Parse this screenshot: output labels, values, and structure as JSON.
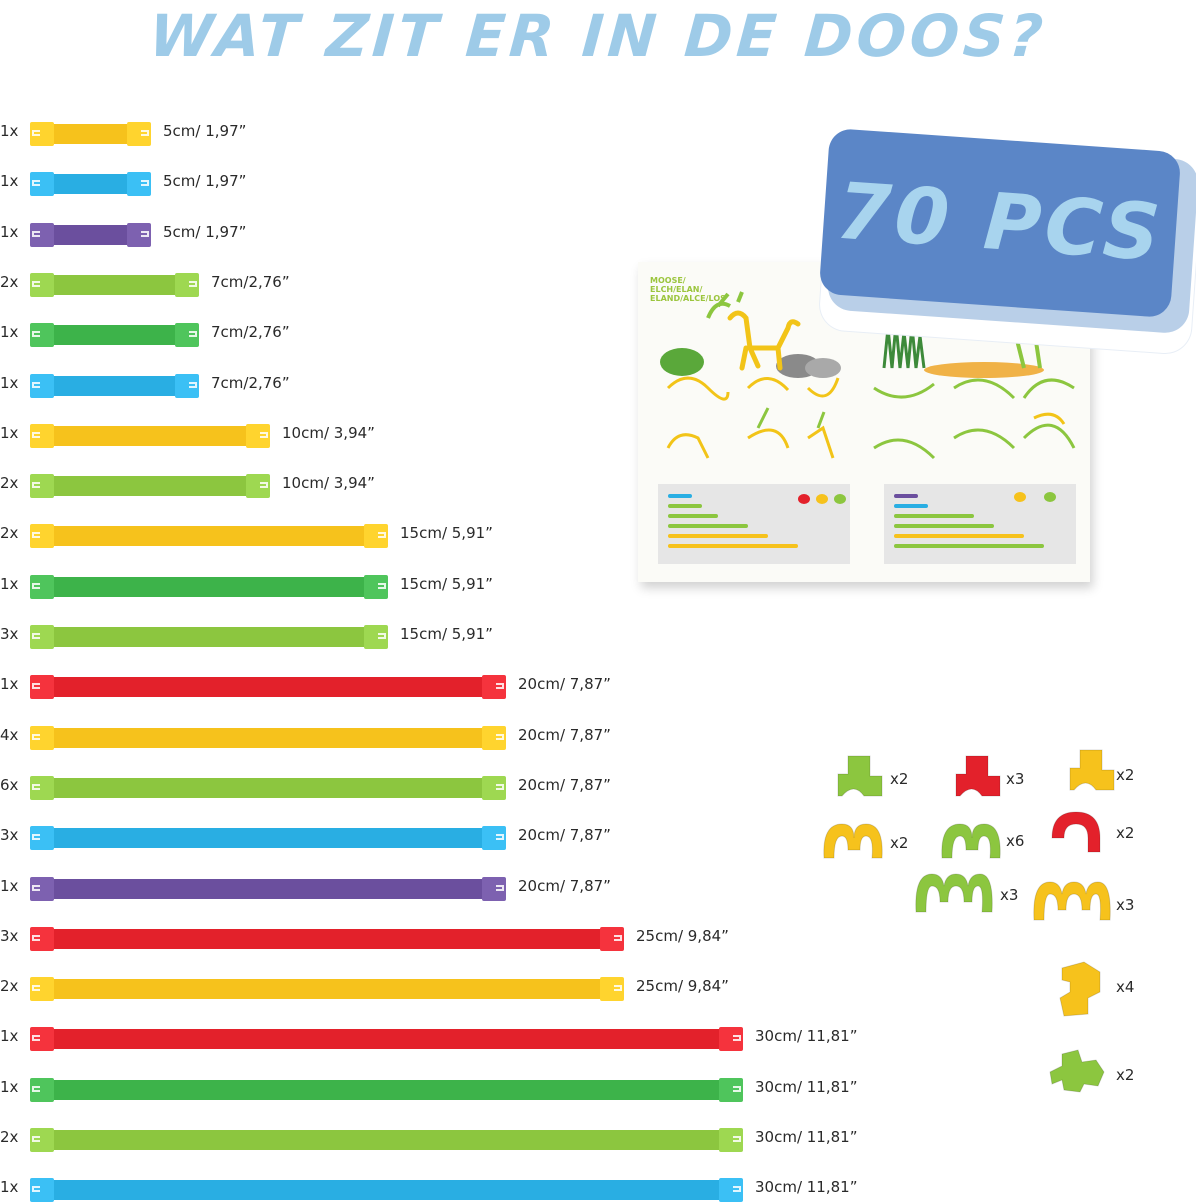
{
  "title": "WAT ZIT ER IN DE DOOS?",
  "badge": {
    "label": "70 PCS"
  },
  "colors": {
    "yellow": "#f6c21c",
    "blue": "#29aee3",
    "purple": "#6b4f9e",
    "lime": "#8cc63f",
    "green": "#3db34a",
    "red": "#e3212b"
  },
  "rods": [
    {
      "qty": "1x",
      "size": "5cm/ 1,97”",
      "color": "yellow",
      "length_cm": 5
    },
    {
      "qty": "1x",
      "size": "5cm/ 1,97”",
      "color": "blue",
      "length_cm": 5
    },
    {
      "qty": "1x",
      "size": "5cm/ 1,97”",
      "color": "purple",
      "length_cm": 5
    },
    {
      "qty": "2x",
      "size": "7cm/2,76”",
      "color": "lime",
      "length_cm": 7
    },
    {
      "qty": "1x",
      "size": "7cm/2,76”",
      "color": "green",
      "length_cm": 7
    },
    {
      "qty": "1x",
      "size": "7cm/2,76”",
      "color": "blue",
      "length_cm": 7
    },
    {
      "qty": "1x",
      "size": "10cm/ 3,94”",
      "color": "yellow",
      "length_cm": 10
    },
    {
      "qty": "2x",
      "size": "10cm/ 3,94”",
      "color": "lime",
      "length_cm": 10
    },
    {
      "qty": "2x",
      "size": "15cm/ 5,91”",
      "color": "yellow",
      "length_cm": 15
    },
    {
      "qty": "1x",
      "size": "15cm/ 5,91”",
      "color": "green",
      "length_cm": 15
    },
    {
      "qty": "3x",
      "size": "15cm/ 5,91”",
      "color": "lime",
      "length_cm": 15
    },
    {
      "qty": "1x",
      "size": "20cm/ 7,87”",
      "color": "red",
      "length_cm": 20
    },
    {
      "qty": "4x",
      "size": "20cm/ 7,87”",
      "color": "yellow",
      "length_cm": 20
    },
    {
      "qty": "6x",
      "size": "20cm/ 7,87”",
      "color": "lime",
      "length_cm": 20
    },
    {
      "qty": "3x",
      "size": "20cm/ 7,87”",
      "color": "blue",
      "length_cm": 20
    },
    {
      "qty": "1x",
      "size": "20cm/ 7,87”",
      "color": "purple",
      "length_cm": 20
    },
    {
      "qty": "3x",
      "size": "25cm/ 9,84”",
      "color": "red",
      "length_cm": 25
    },
    {
      "qty": "2x",
      "size": "25cm/ 9,84”",
      "color": "yellow",
      "length_cm": 25
    },
    {
      "qty": "1x",
      "size": "30cm/ 11,81”",
      "color": "red",
      "length_cm": 30
    },
    {
      "qty": "1x",
      "size": "30cm/ 11,81”",
      "color": "green",
      "length_cm": 30
    },
    {
      "qty": "2x",
      "size": "30cm/ 11,81”",
      "color": "lime",
      "length_cm": 30
    },
    {
      "qty": "1x",
      "size": "30cm/ 11,81”",
      "color": "blue",
      "length_cm": 30
    }
  ],
  "connectors": [
    {
      "qty": "x2",
      "color": "lime",
      "shape": "elbow-connector-icon"
    },
    {
      "qty": "x3",
      "color": "red",
      "shape": "elbow-connector-icon"
    },
    {
      "qty": "x2",
      "color": "yellow",
      "shape": "elbow-connector-icon"
    },
    {
      "qty": "x2",
      "color": "yellow",
      "shape": "double-clip-icon"
    },
    {
      "qty": "x6",
      "color": "lime",
      "shape": "double-clip-icon"
    },
    {
      "qty": "x2",
      "color": "red",
      "shape": "single-clip-icon"
    },
    {
      "qty": "x3",
      "color": "lime",
      "shape": "triple-clip-icon"
    },
    {
      "qty": "x3",
      "color": "yellow",
      "shape": "triple-clip-icon"
    },
    {
      "qty": "x4",
      "color": "yellow",
      "shape": "tee-connector-icon"
    },
    {
      "qty": "x2",
      "color": "lime",
      "shape": "cross-connector-icon"
    }
  ],
  "booklet": {
    "title": "MOOSE/ ELCH/ELAN/ ELAND/ALCE/LOS"
  }
}
